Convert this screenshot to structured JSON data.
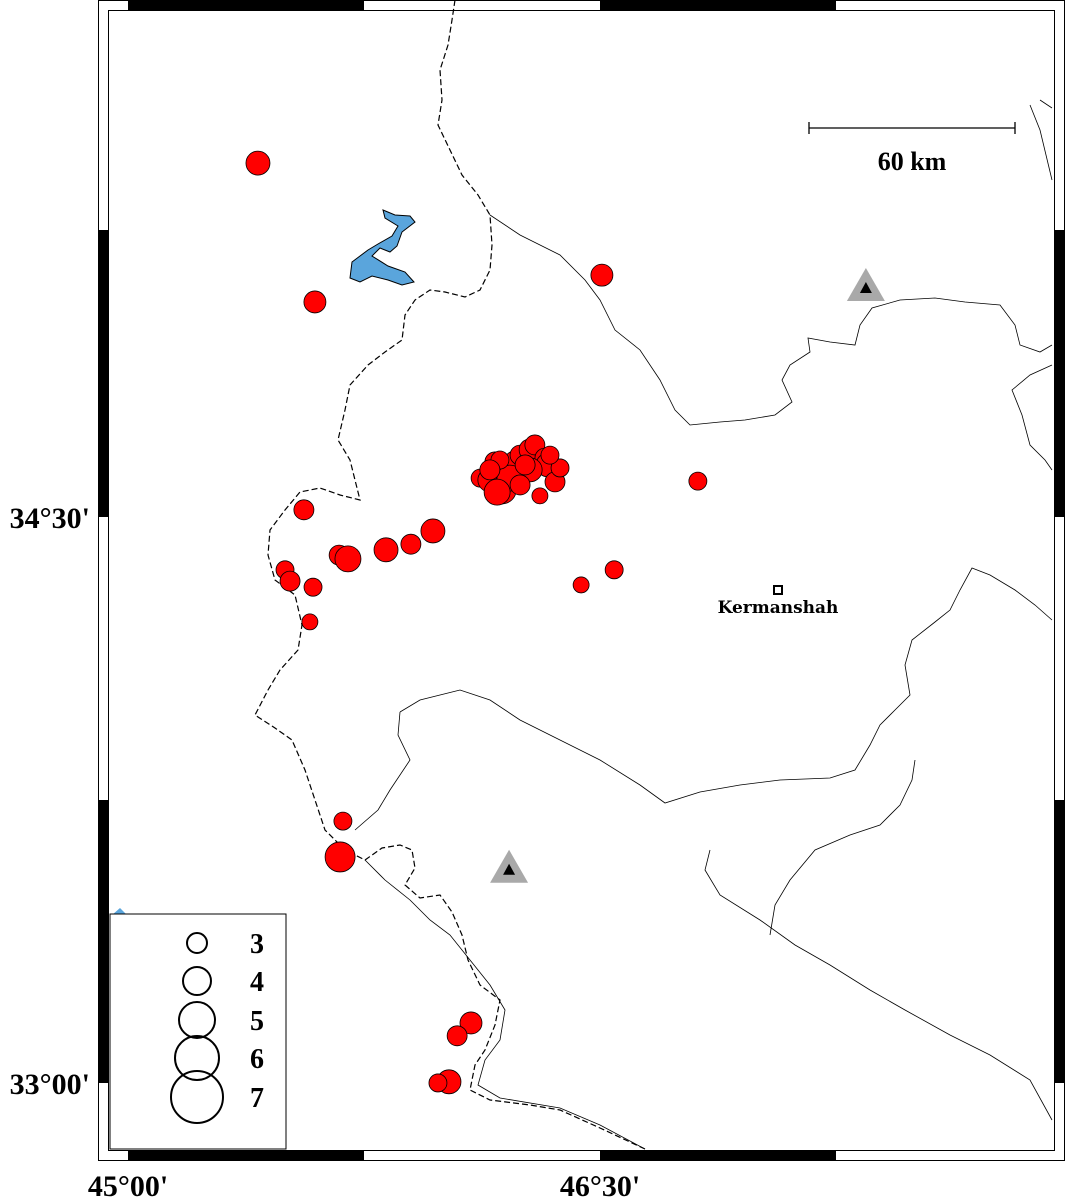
{
  "map": {
    "axis_labels": {
      "lon": [
        {
          "value": 45.0,
          "text": "45°00'"
        },
        {
          "value": 46.5,
          "text": "46°30'"
        }
      ],
      "lat": [
        {
          "value": 34.5,
          "text": "34°30'"
        },
        {
          "value": 33.0,
          "text": "33°00'"
        }
      ]
    },
    "scale_bar": {
      "label": "60 km"
    },
    "city": {
      "name": "Kermanshah",
      "lon": 47.066,
      "lat": 34.307
    },
    "stations": [
      {
        "lon": 47.345,
        "lat": 35.107
      },
      {
        "lon": 46.211,
        "lat": 33.565
      }
    ],
    "colors": {
      "event": "#ff0000",
      "water": "#5aa5dc",
      "station_outer": "#a9a9a9",
      "station_inner": "#000000"
    },
    "legend": {
      "title": "",
      "magnitudes": [
        {
          "mag": 3,
          "label": "3"
        },
        {
          "mag": 4,
          "label": "4"
        },
        {
          "mag": 5,
          "label": "5"
        },
        {
          "mag": 6,
          "label": "6"
        },
        {
          "mag": 7,
          "label": "7"
        }
      ]
    },
    "events": [
      {
        "lon": 45.413,
        "lat": 35.438,
        "mag": 3.5
      },
      {
        "lon": 45.594,
        "lat": 35.07,
        "mag": 3.25
      },
      {
        "lon": 46.506,
        "lat": 35.141,
        "mag": 3.25
      },
      {
        "lon": 46.811,
        "lat": 34.595,
        "mag": 2.75
      },
      {
        "lon": 45.559,
        "lat": 34.519,
        "mag": 3.0
      },
      {
        "lon": 45.671,
        "lat": 34.399,
        "mag": 3.0
      },
      {
        "lon": 45.699,
        "lat": 34.389,
        "mag": 3.75
      },
      {
        "lon": 45.82,
        "lat": 34.413,
        "mag": 3.5
      },
      {
        "lon": 45.899,
        "lat": 34.428,
        "mag": 3.0
      },
      {
        "lon": 45.969,
        "lat": 34.463,
        "mag": 3.5
      },
      {
        "lon": 45.499,
        "lat": 34.36,
        "mag": 2.75
      },
      {
        "lon": 45.515,
        "lat": 34.33,
        "mag": 3.0
      },
      {
        "lon": 45.588,
        "lat": 34.314,
        "mag": 2.75
      },
      {
        "lon": 45.578,
        "lat": 34.222,
        "mag": 2.5
      },
      {
        "lon": 46.44,
        "lat": 34.32,
        "mag": 2.5
      },
      {
        "lon": 46.545,
        "lat": 34.36,
        "mag": 2.75
      },
      {
        "lon": 45.683,
        "lat": 33.694,
        "mag": 2.75
      },
      {
        "lon": 45.674,
        "lat": 33.599,
        "mag": 4.25
      },
      {
        "lon": 46.09,
        "lat": 33.159,
        "mag": 3.25
      },
      {
        "lon": 46.046,
        "lat": 33.125,
        "mag": 3.0
      },
      {
        "lon": 46.02,
        "lat": 33.003,
        "mag": 3.5
      },
      {
        "lon": 45.985,
        "lat": 33.0,
        "mag": 2.75
      },
      {
        "lon": 46.119,
        "lat": 34.603,
        "mag": 2.75
      },
      {
        "lon": 46.15,
        "lat": 34.598,
        "mag": 3.5
      },
      {
        "lon": 46.166,
        "lat": 34.646,
        "mag": 3.0
      },
      {
        "lon": 46.189,
        "lat": 34.572,
        "mag": 4.0
      },
      {
        "lon": 46.198,
        "lat": 34.625,
        "mag": 3.5
      },
      {
        "lon": 46.23,
        "lat": 34.646,
        "mag": 3.25
      },
      {
        "lon": 46.246,
        "lat": 34.664,
        "mag": 3.0
      },
      {
        "lon": 46.278,
        "lat": 34.678,
        "mag": 3.25
      },
      {
        "lon": 46.293,
        "lat": 34.691,
        "mag": 3.0
      },
      {
        "lon": 46.325,
        "lat": 34.656,
        "mag": 3.0
      },
      {
        "lon": 46.335,
        "lat": 34.638,
        "mag": 3.5
      },
      {
        "lon": 46.357,
        "lat": 34.593,
        "mag": 3.0
      },
      {
        "lon": 46.373,
        "lat": 34.63,
        "mag": 2.75
      },
      {
        "lon": 46.309,
        "lat": 34.556,
        "mag": 2.5
      },
      {
        "lon": 46.278,
        "lat": 34.625,
        "mag": 3.5
      },
      {
        "lon": 46.214,
        "lat": 34.603,
        "mag": 3.75
      },
      {
        "lon": 46.182,
        "lat": 34.651,
        "mag": 2.75
      },
      {
        "lon": 46.262,
        "lat": 34.638,
        "mag": 3.0
      },
      {
        "lon": 46.15,
        "lat": 34.625,
        "mag": 3.0
      },
      {
        "lon": 46.341,
        "lat": 34.664,
        "mag": 2.75
      },
      {
        "lon": 46.173,
        "lat": 34.566,
        "mag": 3.75
      },
      {
        "lon": 46.246,
        "lat": 34.585,
        "mag": 3.0
      }
    ]
  }
}
